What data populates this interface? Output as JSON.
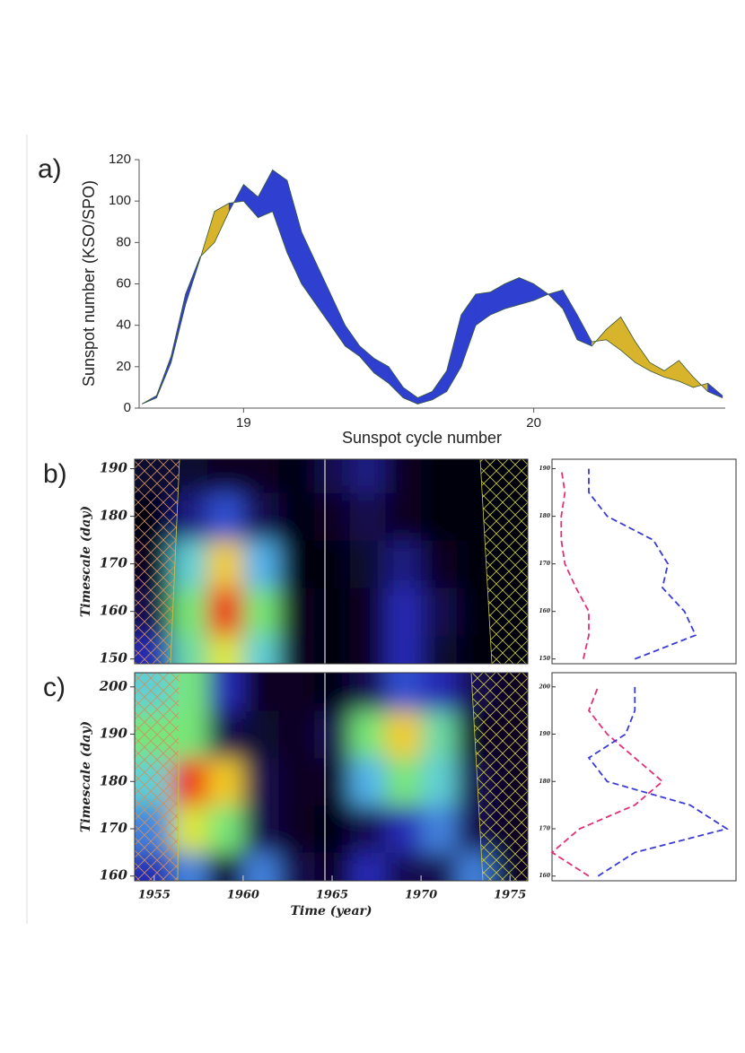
{
  "chart_data": [
    {
      "type": "band",
      "label": "a)",
      "xlabel": "Sunspot cycle number",
      "ylabel": "Sunspot number (KSO/SPO)",
      "x": [
        18.65,
        18.7,
        18.75,
        18.8,
        18.85,
        18.9,
        18.95,
        19.0,
        19.05,
        19.1,
        19.15,
        19.2,
        19.25,
        19.3,
        19.35,
        19.4,
        19.45,
        19.5,
        19.55,
        19.6,
        19.65,
        19.7,
        19.75,
        19.8,
        19.85,
        19.9,
        19.95,
        20.0,
        20.05,
        20.1,
        20.15,
        20.2,
        20.25,
        20.3,
        20.35,
        20.4,
        20.45,
        20.5,
        20.55,
        20.6,
        20.65
      ],
      "series": [
        {
          "color": "#2f3fd0",
          "values": [
            2,
            6,
            25,
            55,
            73,
            80,
            95,
            108,
            102,
            115,
            110,
            85,
            70,
            55,
            40,
            30,
            24,
            20,
            10,
            5,
            8,
            18,
            45,
            55,
            56,
            60,
            63,
            60,
            55,
            57,
            45,
            32,
            33,
            28,
            22,
            18,
            15,
            13,
            10,
            12,
            6
          ]
        },
        {
          "color": "#d8b42c",
          "values": [
            2,
            5,
            22,
            50,
            72,
            95,
            99,
            100,
            92,
            95,
            75,
            60,
            50,
            40,
            30,
            25,
            17,
            12,
            5,
            2,
            4,
            8,
            20,
            40,
            45,
            48,
            50,
            52,
            55,
            48,
            33,
            30,
            38,
            44,
            32,
            22,
            18,
            23,
            15,
            8,
            5
          ]
        }
      ],
      "xlim": [
        18.64,
        20.66
      ],
      "xticks": [
        19,
        20
      ],
      "ylim": [
        0,
        120
      ],
      "yticks": [
        0,
        20,
        40,
        60,
        80,
        100,
        120
      ]
    },
    {
      "type": "heatmap",
      "label": "b)",
      "ylabel": "Timescale (day)",
      "x": [
        1955,
        1957,
        1959,
        1961,
        1963,
        1965,
        1967,
        1969,
        1971,
        1973,
        1975
      ],
      "y": [
        150,
        160,
        170,
        180,
        190
      ],
      "z": [
        [
          0.3,
          0.55,
          0.7,
          0.5,
          0.1,
          0.05,
          0.1,
          0.3,
          0.15,
          0.05,
          0.05
        ],
        [
          0.2,
          0.6,
          0.95,
          0.6,
          0.1,
          0.05,
          0.1,
          0.3,
          0.2,
          0.05,
          0.05
        ],
        [
          0.1,
          0.5,
          0.75,
          0.45,
          0.05,
          0.05,
          0.15,
          0.25,
          0.1,
          0.05,
          0.05
        ],
        [
          0.05,
          0.25,
          0.35,
          0.2,
          0.05,
          0.1,
          0.2,
          0.1,
          0.05,
          0.05,
          0.05
        ],
        [
          0.15,
          0.15,
          0.1,
          0.1,
          0.05,
          0.2,
          0.25,
          0.1,
          0.05,
          0.05,
          0.05
        ]
      ],
      "xlim": [
        1953.9,
        1976
      ],
      "ylim": [
        149,
        192
      ],
      "yticks": [
        150,
        160,
        170,
        180,
        190
      ],
      "profile": {
        "y": [
          150,
          155,
          160,
          165,
          170,
          175,
          180,
          185,
          190
        ],
        "xlim": [
          0,
          1
        ],
        "series": [
          {
            "color": "#e0307a",
            "values": [
              0.17,
              0.2,
              0.2,
              0.13,
              0.07,
              0.05,
              0.05,
              0.07,
              0.05
            ]
          },
          {
            "color": "#3a3ad8",
            "values": [
              0.45,
              0.78,
              0.72,
              0.6,
              0.63,
              0.55,
              0.3,
              0.2,
              0.2
            ]
          }
        ]
      }
    },
    {
      "type": "heatmap",
      "label": "c)",
      "ylabel": "Timescale (day)",
      "xlabel": "Time (year)",
      "x": [
        1955,
        1957,
        1959,
        1961,
        1963,
        1965,
        1967,
        1969,
        1971,
        1973,
        1975
      ],
      "y": [
        160,
        170,
        180,
        190,
        200
      ],
      "z": [
        [
          0.3,
          0.4,
          0.1,
          0.4,
          0.2,
          0.1,
          0.3,
          0.2,
          0.2,
          0.4,
          0.1
        ],
        [
          0.4,
          0.7,
          0.6,
          0.2,
          0.1,
          0.05,
          0.2,
          0.3,
          0.4,
          0.2,
          0.1
        ],
        [
          0.5,
          0.95,
          0.75,
          0.2,
          0.1,
          0.1,
          0.45,
          0.6,
          0.5,
          0.2,
          0.1
        ],
        [
          0.6,
          0.6,
          0.2,
          0.15,
          0.1,
          0.2,
          0.6,
          0.75,
          0.55,
          0.1,
          0.1
        ],
        [
          0.5,
          0.6,
          0.3,
          0.1,
          0.1,
          0.05,
          0.2,
          0.35,
          0.3,
          0.2,
          0.1
        ]
      ],
      "xlim": [
        1953.9,
        1976
      ],
      "xticks": [
        1955,
        1960,
        1965,
        1970,
        1975
      ],
      "ylim": [
        159,
        203
      ],
      "yticks": [
        160,
        170,
        180,
        190,
        200
      ],
      "profile": {
        "y": [
          160,
          165,
          170,
          175,
          180,
          185,
          190,
          195,
          200
        ],
        "xlim": [
          0,
          1
        ],
        "series": [
          {
            "color": "#e0307a",
            "values": [
              0.2,
              0.0,
              0.15,
              0.45,
              0.6,
              0.45,
              0.3,
              0.2,
              0.25
            ]
          },
          {
            "color": "#3a3ad8",
            "values": [
              0.25,
              0.45,
              0.95,
              0.75,
              0.3,
              0.2,
              0.4,
              0.45,
              0.45
            ]
          }
        ]
      }
    }
  ]
}
